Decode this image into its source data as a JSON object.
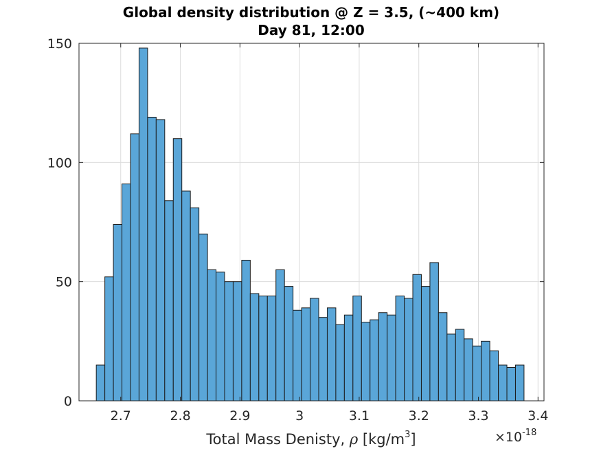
{
  "chart_data": {
    "type": "bar",
    "title_lines": [
      "Global density distribution @ Z = 3.5, (~400 km)",
      "Day 81, 12:00"
    ],
    "xlabel": "Total Mass Denisty, ρ [kg/m3]",
    "xlabel_parts": {
      "text": "Total Mass Denisty, ",
      "symbol": "ρ",
      "unit_pre": " [kg/m",
      "unit_sup": "3",
      "unit_post": "]"
    },
    "x_exponent": {
      "base": "×10",
      "power": "-18"
    },
    "xlim": [
      2.63,
      3.41
    ],
    "ylim": [
      0,
      150
    ],
    "xticks": [
      2.7,
      2.8,
      2.9,
      3.0,
      3.1,
      3.2,
      3.3,
      3.4
    ],
    "xtick_labels": [
      "2.7",
      "2.8",
      "2.9",
      "3",
      "3.1",
      "3.2",
      "3.3",
      "3.4"
    ],
    "yticks": [
      0,
      50,
      100,
      150
    ],
    "ytick_labels": [
      "0",
      "50",
      "100",
      "150"
    ],
    "grid": true,
    "bar_color": "#5aa6d8",
    "edge_color": "#1a1a1a",
    "bins": {
      "start": 2.659,
      "width": 0.01435,
      "values": [
        15,
        52,
        74,
        91,
        112,
        148,
        119,
        118,
        84,
        110,
        88,
        81,
        70,
        55,
        54,
        50,
        50,
        59,
        45,
        44,
        44,
        55,
        48,
        38,
        39,
        43,
        35,
        39,
        32,
        36,
        44,
        33,
        34,
        37,
        36,
        44,
        43,
        53,
        48,
        58,
        37,
        28,
        30,
        26,
        23,
        25,
        21,
        15,
        14,
        15
      ]
    }
  }
}
